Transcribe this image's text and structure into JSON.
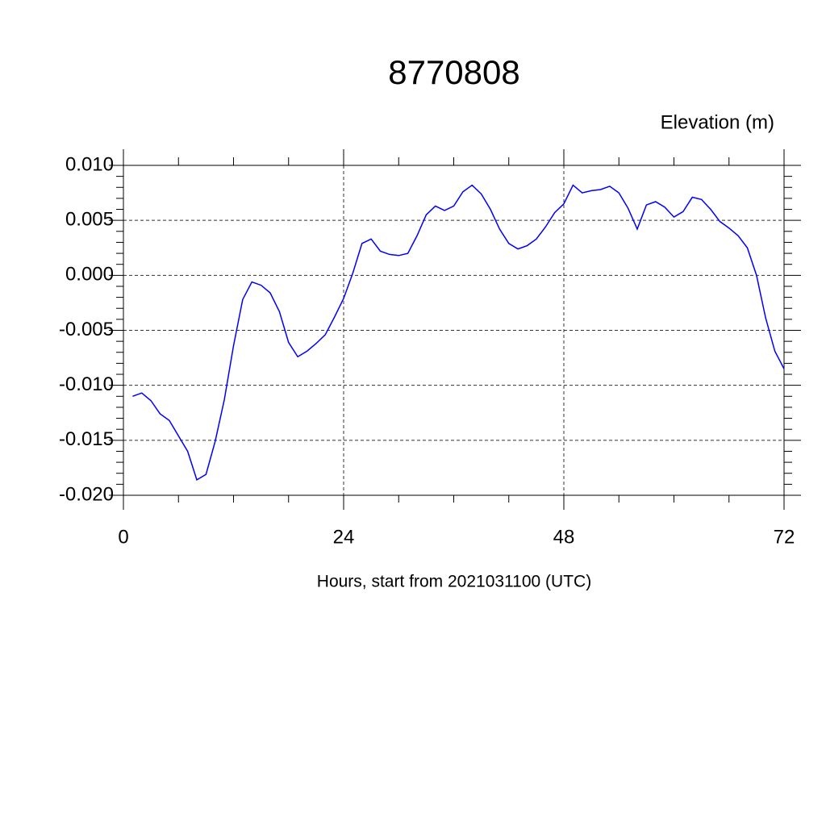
{
  "chart_data": {
    "type": "line",
    "title": "8770808",
    "subtitle": "Elevation (m)",
    "x_label": "Hours, start from 2021031100 (UTC)",
    "x": [
      1,
      2,
      3,
      4,
      5,
      6,
      7,
      8,
      9,
      10,
      11,
      12,
      13,
      14,
      15,
      16,
      17,
      18,
      19,
      20,
      21,
      22,
      23,
      24,
      25,
      26,
      27,
      28,
      29,
      30,
      31,
      32,
      33,
      34,
      35,
      36,
      37,
      38,
      39,
      40,
      41,
      42,
      43,
      44,
      45,
      46,
      47,
      48,
      49,
      50,
      51,
      52,
      53,
      54,
      55,
      56,
      57,
      58,
      59,
      60,
      61,
      62,
      63,
      64,
      65,
      66,
      67,
      68,
      69,
      70,
      71,
      72
    ],
    "series": [
      {
        "name": "8770808",
        "color": "#0000ff",
        "values": [
          -0.011,
          -0.0107,
          -0.0114,
          -0.0126,
          -0.0132,
          -0.0146,
          -0.016,
          -0.0186,
          -0.0181,
          -0.0151,
          -0.0113,
          -0.0064,
          -0.0022,
          -0.0006,
          -0.0009,
          -0.0016,
          -0.0033,
          -0.0061,
          -0.0074,
          -0.0069,
          -0.0062,
          -0.0054,
          -0.0038,
          -0.0021,
          0.0002,
          0.0029,
          0.0033,
          0.0022,
          0.0019,
          0.0018,
          0.002,
          0.0036,
          0.0055,
          0.0063,
          0.0059,
          0.0063,
          0.0076,
          0.0082,
          0.0074,
          0.006,
          0.0042,
          0.0029,
          0.0024,
          0.0027,
          0.0033,
          0.0044,
          0.0057,
          0.0065,
          0.0082,
          0.0075,
          0.0077,
          0.0078,
          0.0081,
          0.0075,
          0.0061,
          0.0042,
          0.0064,
          0.0067,
          0.0062,
          0.0053,
          0.0058,
          0.0071,
          0.0069,
          0.006,
          0.0049,
          0.0043,
          0.0036,
          0.0025,
          0.0,
          -0.0039,
          -0.0069,
          -0.0085
        ]
      }
    ],
    "xlim": [
      0,
      72
    ],
    "xticks": [
      0,
      24,
      48,
      72
    ],
    "ylim": [
      -0.02,
      0.01
    ],
    "yticks": [
      {
        "value": -0.02,
        "label": "-0.020"
      },
      {
        "value": -0.015,
        "label": "-0.015"
      },
      {
        "value": -0.01,
        "label": "-0.010"
      },
      {
        "value": -0.005,
        "label": "-0.005"
      },
      {
        "value": 0,
        "label": "0.000"
      },
      {
        "value": 0.005,
        "label": "0.005"
      },
      {
        "value": 0.01,
        "label": "0.010"
      }
    ],
    "grid": true
  }
}
